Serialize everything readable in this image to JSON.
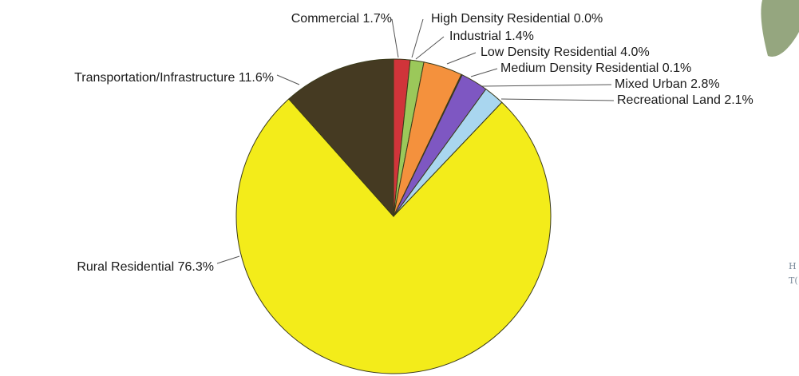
{
  "chart_data": {
    "type": "pie",
    "title": "",
    "categories": [
      "Commercial",
      "High Density Residential",
      "Industrial",
      "Low Density Residential",
      "Medium Density Residential",
      "Mixed Urban",
      "Recreational Land",
      "Rural Residential",
      "Transportation/Infrastructure"
    ],
    "values": [
      1.7,
      0.0,
      1.4,
      4.0,
      0.1,
      2.8,
      2.1,
      76.3,
      11.6
    ],
    "labels": [
      "Commercial 1.7%",
      "High Density Residential 0.0%",
      "Industrial 1.4%",
      "Low Density Residential 4.0%",
      "Medium Density Residential 0.1%",
      "Mixed Urban 2.8%",
      "Recreational Land 2.1%",
      "Rural Residential 76.3%",
      "Transportation/Infrastructure 11.6%"
    ],
    "colors": [
      "#d0343a",
      "#8a2a2a",
      "#9bc85a",
      "#f4913d",
      "#3b2a8a",
      "#7e57c2",
      "#a9d6ef",
      "#f3ec1a",
      "#453a22"
    ],
    "start_angle_deg": 0,
    "direction": "clockwise",
    "legend": "none"
  }
}
